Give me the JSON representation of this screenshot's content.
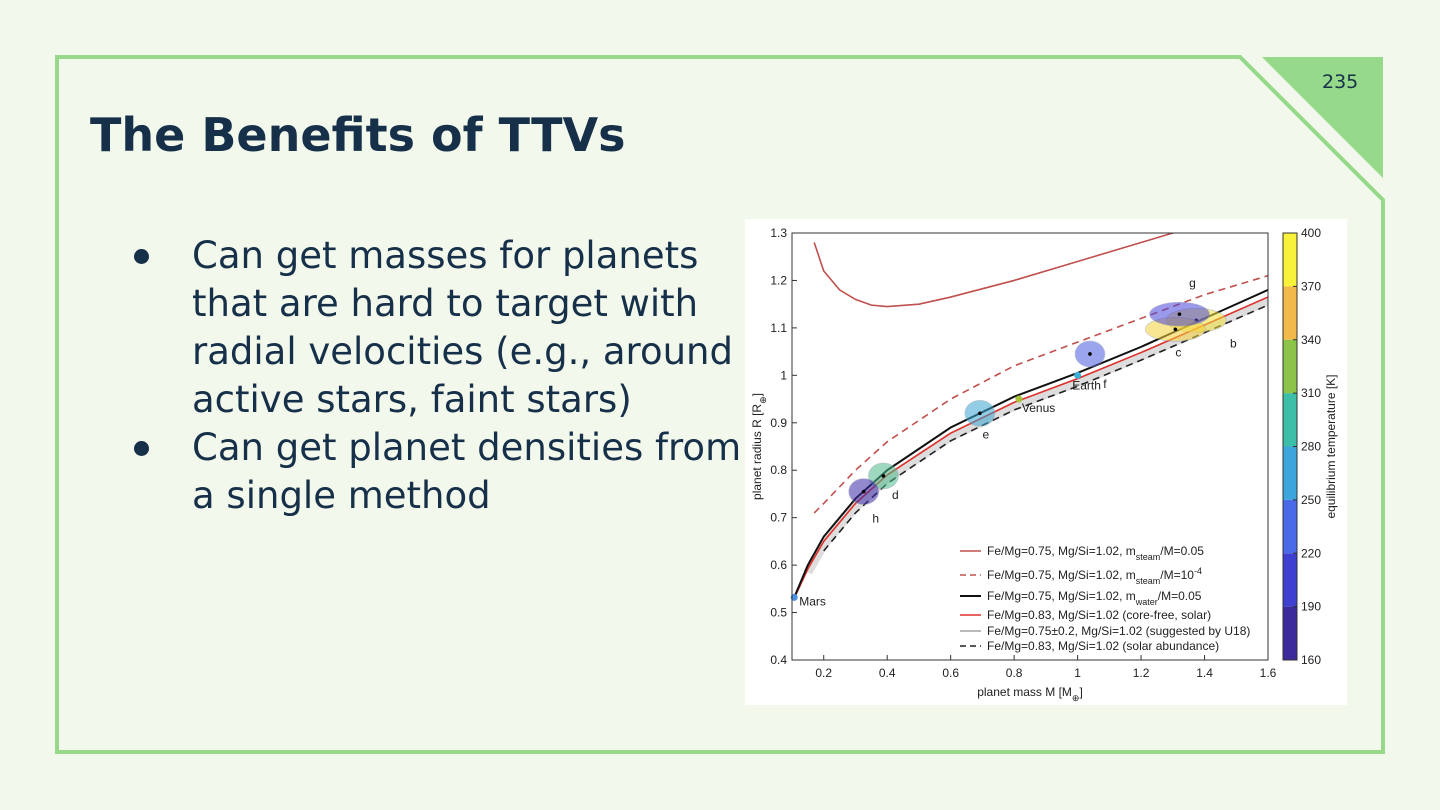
{
  "slide": {
    "page_number": "235",
    "title": "The Benefits of TTVs",
    "bullets": [
      "Can get masses for planets that are hard to target with radial velocities (e.g., around active stars, faint stars)",
      "Can get planet densities from a single method"
    ]
  },
  "chart_data": {
    "type": "line",
    "x_label": [
      {
        "text": "planet mass M [M"
      },
      {
        "sub": "⊕"
      },
      {
        "text": "]"
      }
    ],
    "y_label": [
      {
        "text": "planet radius R [R"
      },
      {
        "sub": "⊕"
      },
      {
        "text": "]"
      }
    ],
    "xlim": [
      0.1,
      1.6
    ],
    "xticks": [
      0.2,
      0.4,
      0.6,
      0.8,
      1,
      1.2,
      1.4,
      1.6
    ],
    "ylim": [
      0.4,
      1.3
    ],
    "yticks": [
      0.4,
      0.5,
      0.6,
      0.7,
      0.8,
      0.9,
      1,
      1.1,
      1.2,
      1.3
    ],
    "series": [
      {
        "name": [
          {
            "text": "Fe/Mg=0.75, Mg/Si=1.02, m"
          },
          {
            "sub": "steam"
          },
          {
            "text": "/M=0.05"
          }
        ],
        "color": "#c0504d",
        "dash": false,
        "width": 1.6,
        "x": [
          0.17,
          0.2,
          0.25,
          0.3,
          0.35,
          0.4,
          0.5,
          0.6,
          0.8,
          1.0,
          1.2,
          1.3
        ],
        "values": [
          1.28,
          1.22,
          1.18,
          1.16,
          1.148,
          1.145,
          1.15,
          1.165,
          1.2,
          1.24,
          1.28,
          1.3
        ]
      },
      {
        "name": [
          {
            "text": "Fe/Mg=0.75, Mg/Si=1.02, m"
          },
          {
            "sub": "steam"
          },
          {
            "text": "/M=10"
          },
          {
            "sup": "-4"
          }
        ],
        "color": "#c0504d",
        "dash": true,
        "width": 1.6,
        "x": [
          0.17,
          0.2,
          0.3,
          0.4,
          0.6,
          0.8,
          1.0,
          1.2,
          1.4,
          1.6
        ],
        "values": [
          0.71,
          0.73,
          0.8,
          0.86,
          0.95,
          1.02,
          1.07,
          1.12,
          1.17,
          1.21
        ]
      },
      {
        "name": [
          {
            "text": "Fe/Mg=0.75, Mg/Si=1.02, m"
          },
          {
            "sub": "water"
          },
          {
            "text": "/M=0.05"
          }
        ],
        "color": "#111111",
        "dash": false,
        "width": 2,
        "x": [
          0.107,
          0.15,
          0.2,
          0.3,
          0.4,
          0.6,
          0.8,
          1.0,
          1.2,
          1.4,
          1.6
        ],
        "values": [
          0.532,
          0.6,
          0.66,
          0.74,
          0.8,
          0.89,
          0.955,
          1.005,
          1.06,
          1.12,
          1.18
        ]
      },
      {
        "name": [
          {
            "text": "Fe/Mg=0.83, Mg/Si=1.02 (core-free, solar)"
          }
        ],
        "color": "#e0302a",
        "dash": false,
        "width": 1.6,
        "x": [
          0.107,
          0.15,
          0.2,
          0.3,
          0.4,
          0.6,
          0.8,
          1.0,
          1.2,
          1.4,
          1.6
        ],
        "values": [
          0.53,
          0.592,
          0.65,
          0.73,
          0.79,
          0.878,
          0.943,
          0.993,
          1.048,
          1.106,
          1.165
        ]
      },
      {
        "name": [
          {
            "text": "Fe/Mg=0.75±0.2, Mg/Si=1.02 (suggested by U18)"
          }
        ],
        "color": "#bbbbbb",
        "dash": false,
        "width": 9,
        "x": [
          0.15,
          0.2,
          0.3,
          0.4,
          0.6,
          0.8,
          1.0,
          1.2,
          1.4,
          1.6
        ],
        "values": [
          0.585,
          0.643,
          0.722,
          0.782,
          0.87,
          0.935,
          0.985,
          1.04,
          1.098,
          1.157
        ]
      },
      {
        "name": [
          {
            "text": "Fe/Mg=0.83, Mg/Si=1.02 (solar abundance)"
          }
        ],
        "color": "#222222",
        "dash": true,
        "width": 1.6,
        "x": [
          0.2,
          0.3,
          0.4,
          0.6,
          0.8,
          1.0,
          1.2,
          1.4,
          1.6
        ],
        "values": [
          0.63,
          0.71,
          0.772,
          0.862,
          0.927,
          0.977,
          1.032,
          1.09,
          1.148
        ]
      }
    ],
    "planets": [
      {
        "name": "Mars",
        "x": 0.107,
        "y": 0.532,
        "color": "#4a8fe0"
      },
      {
        "name": "Venus",
        "x": 0.815,
        "y": 0.95,
        "color": "#a8c23a"
      },
      {
        "name": "Earth",
        "x": 1.0,
        "y": 1.0,
        "color": "#3bb0d8"
      },
      {
        "name": "b",
        "x": 1.374,
        "y": 1.116,
        "color": "#f2e03a"
      },
      {
        "name": "c",
        "x": 1.308,
        "y": 1.097,
        "color": "#f5d23a"
      },
      {
        "name": "d",
        "x": 0.388,
        "y": 0.788,
        "color": "#4dbb8a"
      },
      {
        "name": "e",
        "x": 0.692,
        "y": 0.92,
        "color": "#3aa6d0"
      },
      {
        "name": "f",
        "x": 1.039,
        "y": 1.045,
        "color": "#4a5de0"
      },
      {
        "name": "g",
        "x": 1.321,
        "y": 1.129,
        "color": "#4a46d8"
      },
      {
        "name": "h",
        "x": 0.326,
        "y": 0.755,
        "color": "#3a2aa8"
      }
    ],
    "colorbar": {
      "label": "equilibrium temperature [K]",
      "lim": [
        160,
        400
      ],
      "ticks": [
        160,
        190,
        220,
        250,
        280,
        310,
        340,
        370,
        400
      ],
      "colors": [
        "#3b2a9a",
        "#3f3fd0",
        "#4a6ae8",
        "#3ba6dc",
        "#3cbfa8",
        "#8cc44a",
        "#f2b84a",
        "#f8f23a"
      ]
    }
  }
}
